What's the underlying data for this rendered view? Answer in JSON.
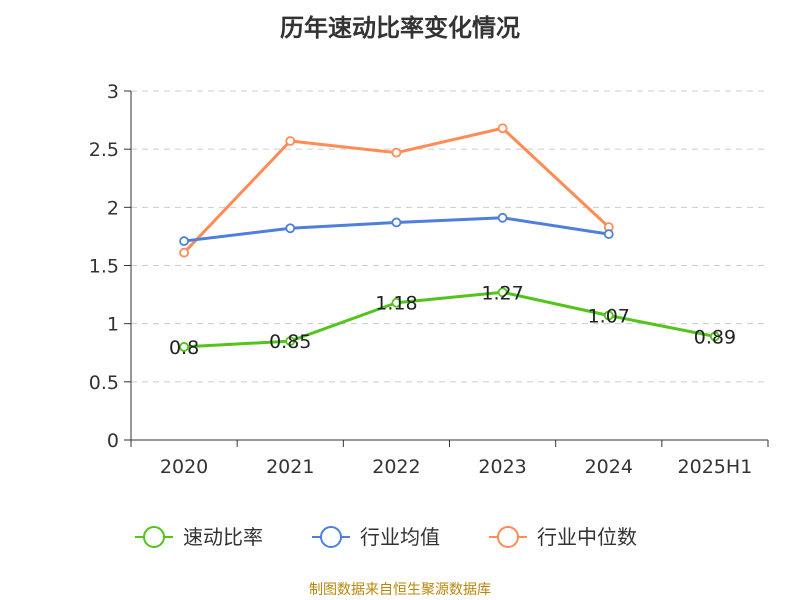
{
  "title": "历年速动比率变化情况",
  "source": "制图数据来自恒生聚源数据库",
  "colors": {
    "series": [
      "#52c41a",
      "#4e7fdc",
      "#ff8c55"
    ],
    "grid": "#cccccc",
    "axis": "#333333"
  },
  "chart_data": {
    "type": "line",
    "title": "历年速动比率变化情况",
    "categories": [
      "2020",
      "2021",
      "2022",
      "2023",
      "2024",
      "2025H1"
    ],
    "ylim": [
      0,
      3
    ],
    "yticks": [
      "0",
      "0.5",
      "1",
      "1.5",
      "2",
      "2.5",
      "3"
    ],
    "grid": true,
    "grid_style": "dashed",
    "legend_position": "bottom",
    "series": [
      {
        "name": "速动比率",
        "values": [
          0.8,
          0.85,
          1.18,
          1.27,
          1.07,
          0.89
        ],
        "labels": [
          "0.8",
          "0.85",
          "1.18",
          "1.27",
          "1.07",
          "0.89"
        ]
      },
      {
        "name": "行业均值",
        "values": [
          1.71,
          1.82,
          1.87,
          1.91,
          1.77,
          null
        ]
      },
      {
        "name": "行业中位数",
        "values": [
          1.61,
          2.57,
          2.47,
          2.68,
          1.83,
          null
        ]
      }
    ]
  }
}
